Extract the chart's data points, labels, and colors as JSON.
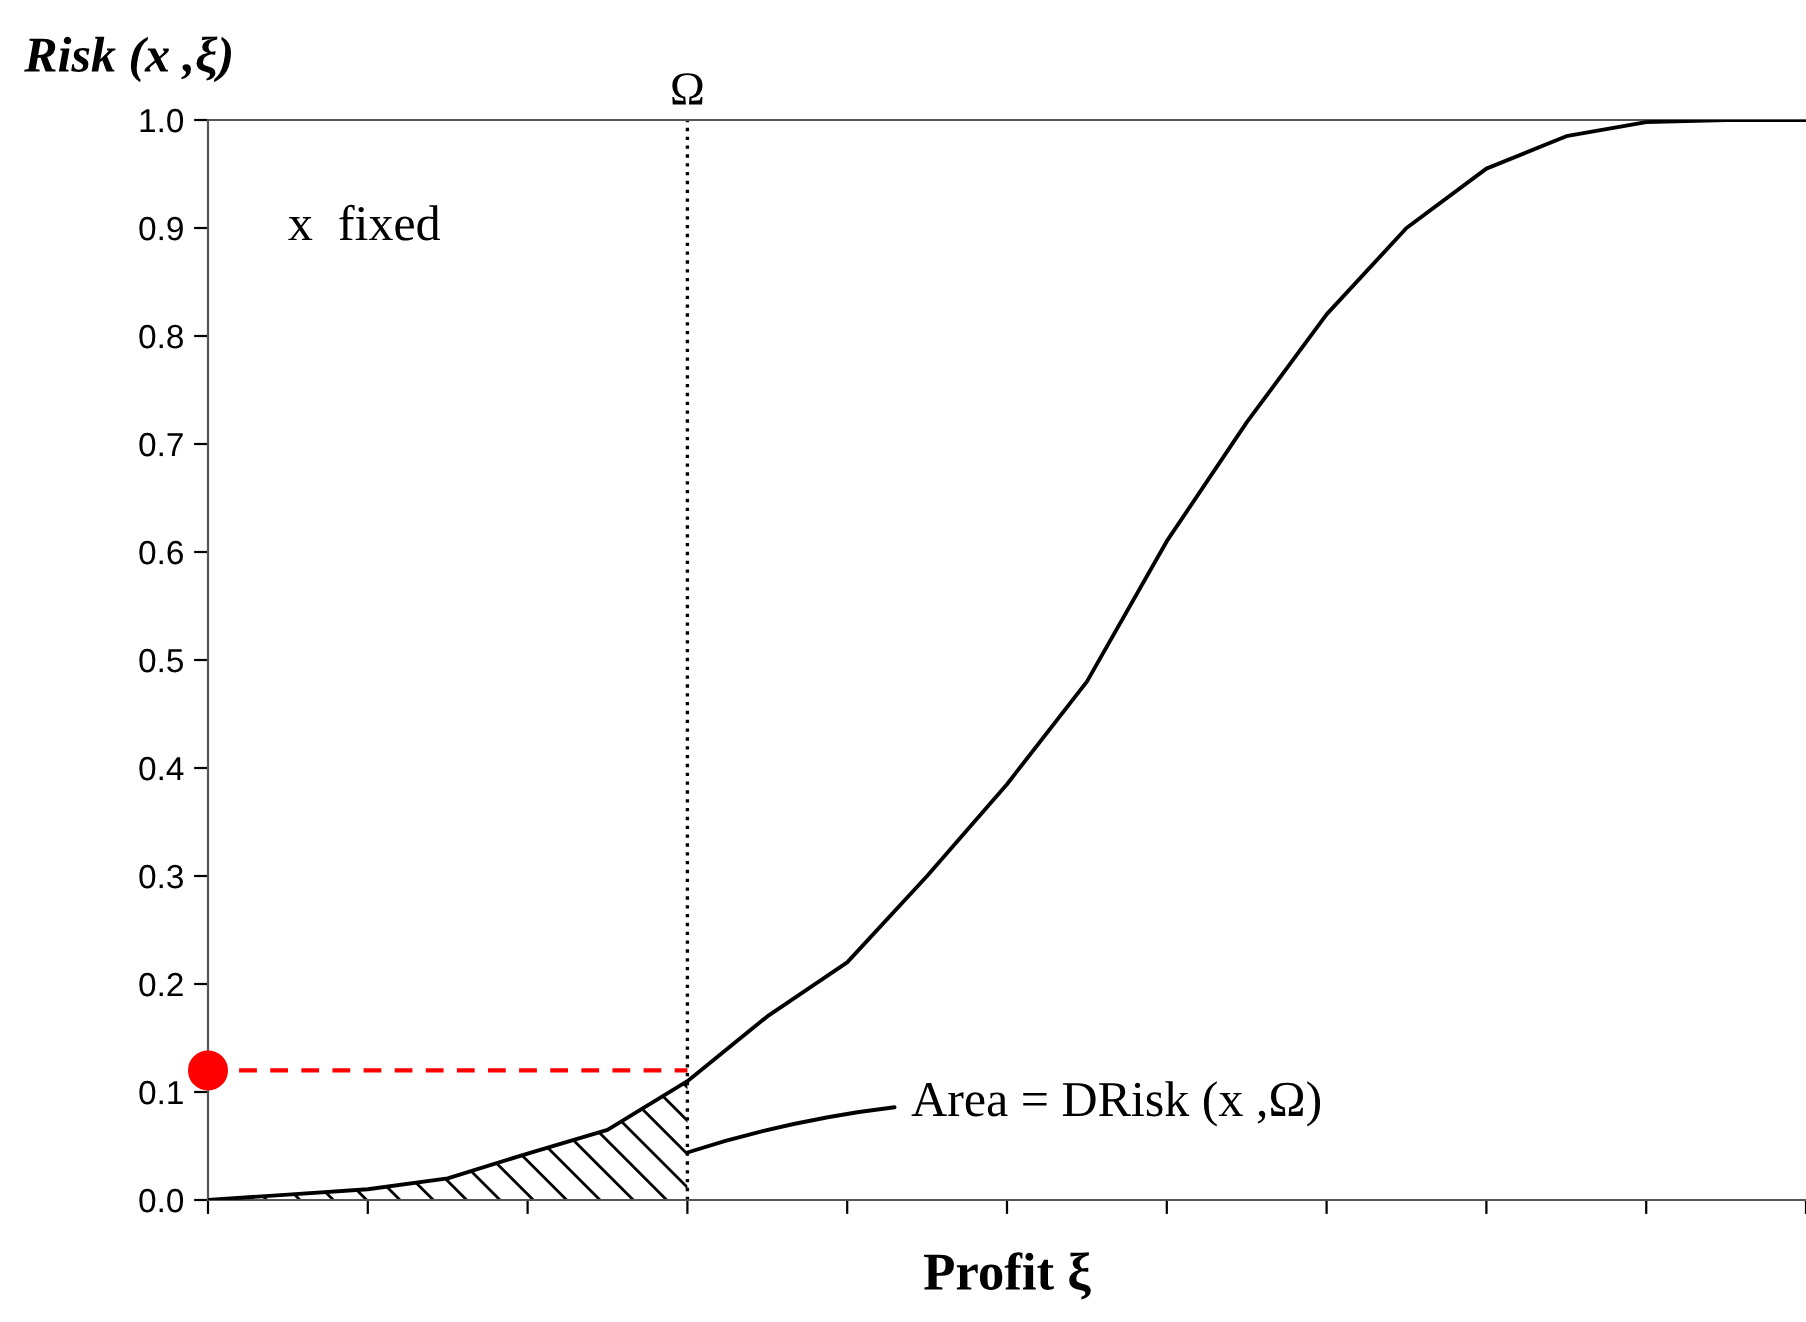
{
  "chart_data": {
    "type": "line",
    "xlabel": "Profit ξ",
    "ylabel": "Risk (x ,ξ)",
    "categories": [
      null,
      null,
      null,
      null,
      null,
      null,
      null,
      null,
      null,
      null,
      null,
      null,
      null,
      null,
      null,
      null,
      null,
      null,
      null,
      null,
      null
    ],
    "ylim": [
      0,
      1.0
    ],
    "yticks": [
      {
        "value": 0,
        "label": "0.0"
      },
      {
        "value": 0.1,
        "label": "0.1"
      },
      {
        "value": 0.2,
        "label": "0.2"
      },
      {
        "value": 0.3,
        "label": "0.3"
      },
      {
        "value": 0.4,
        "label": "0.4"
      },
      {
        "value": 0.5,
        "label": "0.5"
      },
      {
        "value": 0.6,
        "label": "0.6"
      },
      {
        "value": 0.7,
        "label": "0.7"
      },
      {
        "value": 0.8,
        "label": "0.8"
      },
      {
        "value": 0.9,
        "label": "0.9"
      },
      {
        "value": 1.0,
        "label": "1.0"
      }
    ],
    "tick_labels": "y",
    "series": [
      {
        "type": "area",
        "color": "#000000",
        "values": [
          0,
          0.005,
          0.01,
          0.02,
          0.043,
          0.065,
          0.11,
          null,
          null,
          null,
          null,
          null,
          null,
          null,
          null,
          null,
          null,
          null,
          null,
          null,
          null
        ]
      },
      {
        "color": "#000000",
        "values": [
          0,
          0.005,
          0.01,
          0.02,
          0.043,
          0.065,
          0.11,
          0.17,
          0.22,
          0.3,
          0.385,
          0.48,
          0.61,
          0.72,
          0.82,
          0.9,
          0.955,
          0.985,
          0.998,
          1.0,
          1.0
        ]
      },
      {
        "type": "line",
        "color": "#ff0000",
        "line_style": "dashed",
        "values": [
          0.12,
          0.12,
          0.12,
          0.12,
          0.12,
          0.12,
          0.12,
          null,
          null,
          null,
          null,
          null,
          null,
          null,
          null,
          null,
          null,
          null,
          null,
          null,
          null
        ]
      },
      {
        "type": "scatter",
        "color": "#ff0000",
        "marker": "circle",
        "values": [
          0.12,
          null,
          null,
          null,
          null,
          null,
          null,
          null,
          null,
          null,
          null,
          null,
          null,
          null,
          null,
          null,
          null,
          null,
          null,
          null,
          null
        ]
      }
    ],
    "annotations": [
      "x  fixed",
      "Ω",
      "Area = DRisk (x ,Ω)"
    ]
  }
}
